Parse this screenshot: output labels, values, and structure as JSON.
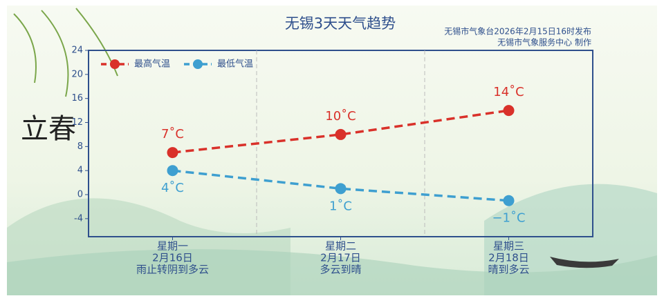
{
  "chart_data": {
    "type": "line",
    "title": "无锡3天天气趋势",
    "subtitle": [
      "无锡市气象台2026年2月15日16时发布",
      "无锡市气象服务中心 制作"
    ],
    "solar_term": "立春",
    "categories": [
      "星期一",
      "星期二",
      "星期三"
    ],
    "dates": [
      "2月16日",
      "2月17日",
      "2月18日"
    ],
    "weather": [
      "雨止转阴到多云",
      "多云到晴",
      "晴到多云"
    ],
    "series": [
      {
        "name": "最高气温",
        "color": "#d9312a",
        "values": [
          7,
          10,
          14
        ],
        "value_labels": [
          "7˚C",
          "10˚C",
          "14˚C"
        ]
      },
      {
        "name": "最低气温",
        "color": "#3e9fd0",
        "values": [
          4,
          1,
          -1
        ],
        "value_labels": [
          "4˚C",
          "1˚C",
          "−1˚C"
        ]
      }
    ],
    "ylim": [
      -7,
      24
    ],
    "yticks": [
      -4,
      0,
      4,
      8,
      12,
      16,
      20,
      24
    ],
    "legend": "upper left"
  }
}
